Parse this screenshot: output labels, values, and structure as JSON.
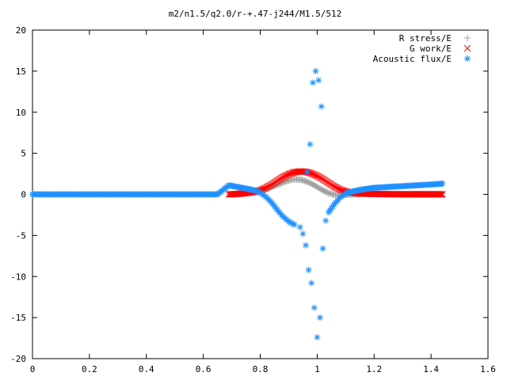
{
  "chart_data": {
    "type": "scatter",
    "title": "m2/n1.5/q2.0/r-+.47-j244/M1.5/512",
    "xlabel": "",
    "ylabel": "",
    "xlim": [
      0,
      1.6
    ],
    "ylim": [
      -20,
      20
    ],
    "x_ticks": [
      "0",
      "0.2",
      "0.4",
      "0.6",
      "0.8",
      "1",
      "1.2",
      "1.4",
      "1.6"
    ],
    "x_tick_values": [
      0,
      0.2,
      0.4,
      0.6,
      0.8,
      1.0,
      1.2,
      1.4,
      1.6
    ],
    "y_ticks": [
      "20",
      "15",
      "10",
      "5",
      "0",
      "-5",
      "-10",
      "-15",
      "-20"
    ],
    "y_tick_values": [
      20,
      15,
      10,
      5,
      0,
      -5,
      -10,
      -15,
      -20
    ],
    "grid": false,
    "legend_position": "top-right",
    "series": [
      {
        "name": "R stress/E",
        "marker": "plus",
        "color": "#a0a0a0",
        "x": [
          0.69,
          0.72,
          0.75,
          0.78,
          0.8,
          0.82,
          0.84,
          0.86,
          0.88,
          0.9,
          0.92,
          0.94,
          0.96,
          0.98,
          1.0,
          1.02,
          1.04,
          1.06,
          1.08,
          1.1,
          1.13,
          1.16,
          1.2,
          1.25,
          1.3,
          1.35,
          1.4,
          1.44
        ],
        "y": [
          0.0,
          0.05,
          0.15,
          0.3,
          0.45,
          0.65,
          0.9,
          1.15,
          1.45,
          1.7,
          1.85,
          1.8,
          1.6,
          1.3,
          0.9,
          0.5,
          0.15,
          -0.05,
          -0.1,
          -0.05,
          0.0,
          0.05,
          0.05,
          0.05,
          0.05,
          0.05,
          0.05,
          0.05
        ]
      },
      {
        "name": "G work/E",
        "marker": "cross",
        "color": "#ff0000",
        "x": [
          0.69,
          0.72,
          0.75,
          0.78,
          0.8,
          0.82,
          0.84,
          0.86,
          0.88,
          0.9,
          0.92,
          0.94,
          0.96,
          0.98,
          1.0,
          1.02,
          1.04,
          1.06,
          1.08,
          1.1,
          1.12,
          1.15,
          1.2,
          1.25,
          1.3,
          1.35,
          1.4,
          1.44
        ],
        "y": [
          0.0,
          0.05,
          0.15,
          0.3,
          0.5,
          0.8,
          1.2,
          1.65,
          2.1,
          2.45,
          2.7,
          2.8,
          2.75,
          2.55,
          2.25,
          1.85,
          1.4,
          0.95,
          0.6,
          0.35,
          0.2,
          0.1,
          0.05,
          0.02,
          0.0,
          0.0,
          0.0,
          0.0
        ]
      },
      {
        "name": "Acoustic flux/E",
        "marker": "star",
        "color": "#1e90ff",
        "x": [
          0.0,
          0.05,
          0.1,
          0.15,
          0.2,
          0.25,
          0.3,
          0.35,
          0.4,
          0.45,
          0.5,
          0.55,
          0.6,
          0.65,
          0.69,
          0.72,
          0.75,
          0.78,
          0.8,
          0.82,
          0.84,
          0.86,
          0.88,
          0.9,
          0.92,
          0.94,
          0.95,
          0.96,
          0.965,
          0.97,
          0.975,
          0.98,
          0.985,
          0.99,
          0.995,
          1.0,
          1.005,
          1.01,
          1.015,
          1.02,
          1.03,
          1.04,
          1.06,
          1.08,
          1.1,
          1.13,
          1.16,
          1.2,
          1.25,
          1.3,
          1.35,
          1.4,
          1.44
        ],
        "y": [
          0.0,
          0.0,
          0.0,
          0.0,
          0.0,
          0.0,
          0.0,
          0.0,
          0.0,
          0.0,
          0.0,
          0.0,
          0.0,
          0.0,
          1.1,
          0.9,
          0.7,
          0.5,
          0.2,
          -0.3,
          -1.0,
          -1.9,
          -2.7,
          -3.3,
          -3.7,
          -4.0,
          -4.8,
          -6.2,
          2.7,
          -9.2,
          6.1,
          -10.8,
          13.6,
          -13.8,
          15.0,
          -17.4,
          13.9,
          -15.0,
          10.7,
          -6.6,
          -3.2,
          -2.2,
          -1.2,
          -0.4,
          0.1,
          0.4,
          0.6,
          0.8,
          0.9,
          1.0,
          1.1,
          1.2,
          1.3
        ]
      }
    ]
  }
}
